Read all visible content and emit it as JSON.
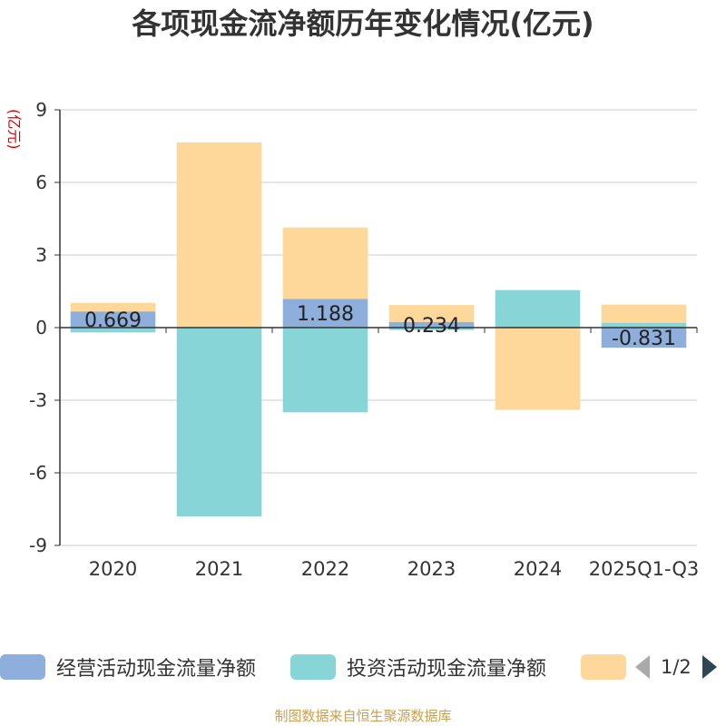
{
  "chart_data": {
    "type": "bar",
    "title": "各项现金流净额历年变化情况(亿元)",
    "ylabel": "(亿元)",
    "categories": [
      "2020",
      "2021",
      "2022",
      "2023",
      "2024",
      "2025Q1-Q3"
    ],
    "ylim": [
      -9,
      9
    ],
    "yticks": [
      9,
      6,
      3,
      0,
      -3,
      -6,
      -9
    ],
    "stacked": true,
    "grid": true,
    "series": [
      {
        "name": "经营活动现金流量净额",
        "color": "#8eaedb",
        "values": [
          0.669,
          0.0,
          1.188,
          0.234,
          0.0,
          -0.831
        ],
        "labels": [
          "0.669",
          "",
          "1.188",
          "0.234",
          "",
          "-0.831"
        ]
      },
      {
        "name": "投资活动现金流量净额",
        "color": "#88d5d8",
        "values": [
          -0.2,
          -7.8,
          -3.5,
          -0.1,
          1.55,
          0.2
        ]
      },
      {
        "name": "",
        "color": "#fdd89a",
        "values": [
          0.35,
          7.65,
          2.95,
          0.7,
          -3.4,
          0.75
        ]
      }
    ]
  },
  "legend": {
    "items": [
      {
        "label": "经营活动现金流量净额",
        "color": "#8eaedb"
      },
      {
        "label": "投资活动现金流量净额",
        "color": "#88d5d8"
      },
      {
        "label": "",
        "color": "#fdd89a"
      }
    ],
    "page": "1/2"
  },
  "source": "制图数据来自恒生聚源数据库"
}
